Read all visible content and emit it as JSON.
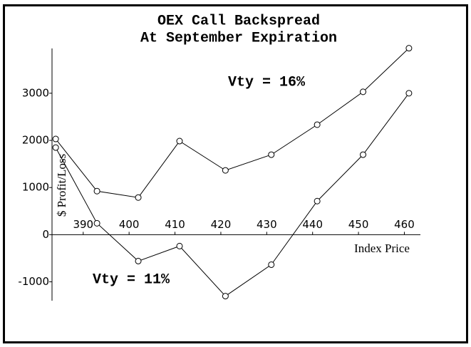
{
  "chart_data": {
    "type": "line",
    "title": "OEX Call Backspread",
    "subtitle": "At September Expiration",
    "x_label": "Index Price",
    "y_label": "$ Profit/Loss",
    "x": [
      384,
      393,
      402,
      411,
      421,
      431,
      441,
      451,
      461
    ],
    "series": [
      {
        "name": "Vty = 16%",
        "color": "#000000",
        "values": [
          2030,
          924,
          788,
          1985,
          1364,
          1697,
          2333,
          3030,
          3955
        ]
      },
      {
        "name": "Vty = 11%",
        "color": "#000000",
        "values": [
          1848,
          242,
          -560,
          -242,
          -1303,
          -636,
          712,
          1697,
          3000
        ]
      }
    ],
    "xlim": [
      383.2,
      463.5
    ],
    "xticks": [
      390,
      400,
      410,
      420,
      430,
      440,
      450,
      460
    ],
    "ylim": [
      -1400,
      3950
    ],
    "yticks": [
      -1000,
      0,
      1000,
      2000,
      3000
    ]
  }
}
